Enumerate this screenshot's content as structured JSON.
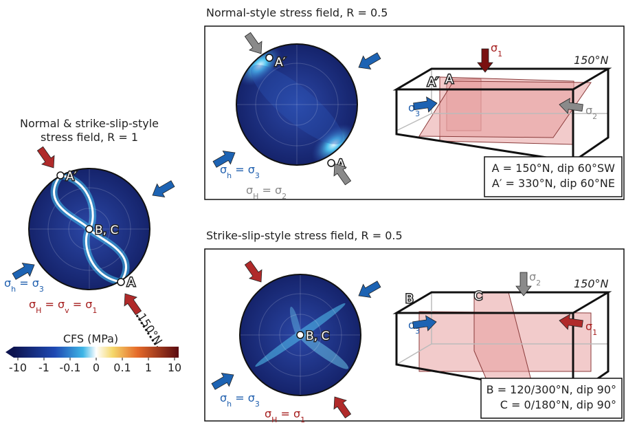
{
  "left_panel": {
    "title_lines": [
      "Normal & strike-slip-style",
      "stress field, R = 1"
    ],
    "point_a_prime": "A′",
    "point_a": "A",
    "point_bc": "B, C",
    "sigma_h_label": [
      "σ",
      "h",
      " = σ",
      "3"
    ],
    "sigma_H_label": [
      "σ",
      "H",
      " = σ",
      "v",
      " = σ",
      "1"
    ],
    "strike_label": "150°N"
  },
  "colorbar": {
    "title": "CFS (MPa)",
    "ticks": [
      "-10",
      "-1",
      "-0.1",
      "0",
      "0.1",
      "1",
      "10"
    ]
  },
  "top_panel": {
    "title": "Normal-style stress field, R = 0.5",
    "point_a_prime": "A′",
    "point_a": "A",
    "sigma_h_label": [
      "σ",
      "h",
      " = σ",
      "3"
    ],
    "sigma_H_label": [
      "σ",
      "H",
      " = σ",
      "2"
    ],
    "box_sigma_1": [
      "σ",
      "1"
    ],
    "box_sigma_3": [
      "σ",
      "3"
    ],
    "box_sigma_2": [
      "σ",
      "2"
    ],
    "box_strike": "150°N",
    "plane_a_prime": "A′",
    "plane_a": "A",
    "legend_lines": [
      "A = 150°N, dip 60°SW",
      "A′ = 330°N, dip 60°NE"
    ]
  },
  "bottom_panel": {
    "title": "Strike-slip-style stress field, R = 0.5",
    "point_bc": "B, C",
    "sigma_h_label": [
      "σ",
      "h",
      " = σ",
      "3"
    ],
    "sigma_H_label": [
      "σ",
      "H",
      " = σ",
      "1"
    ],
    "box_sigma_2": [
      "σ",
      "2"
    ],
    "box_sigma_3": [
      "σ",
      "3"
    ],
    "box_sigma_1": [
      "σ",
      "1"
    ],
    "box_strike": "150°N",
    "plane_b": "B",
    "plane_c": "C",
    "legend_lines": [
      "B = 120/300°N, dip 90°",
      "C = 0/180°N, dip 90°"
    ]
  }
}
